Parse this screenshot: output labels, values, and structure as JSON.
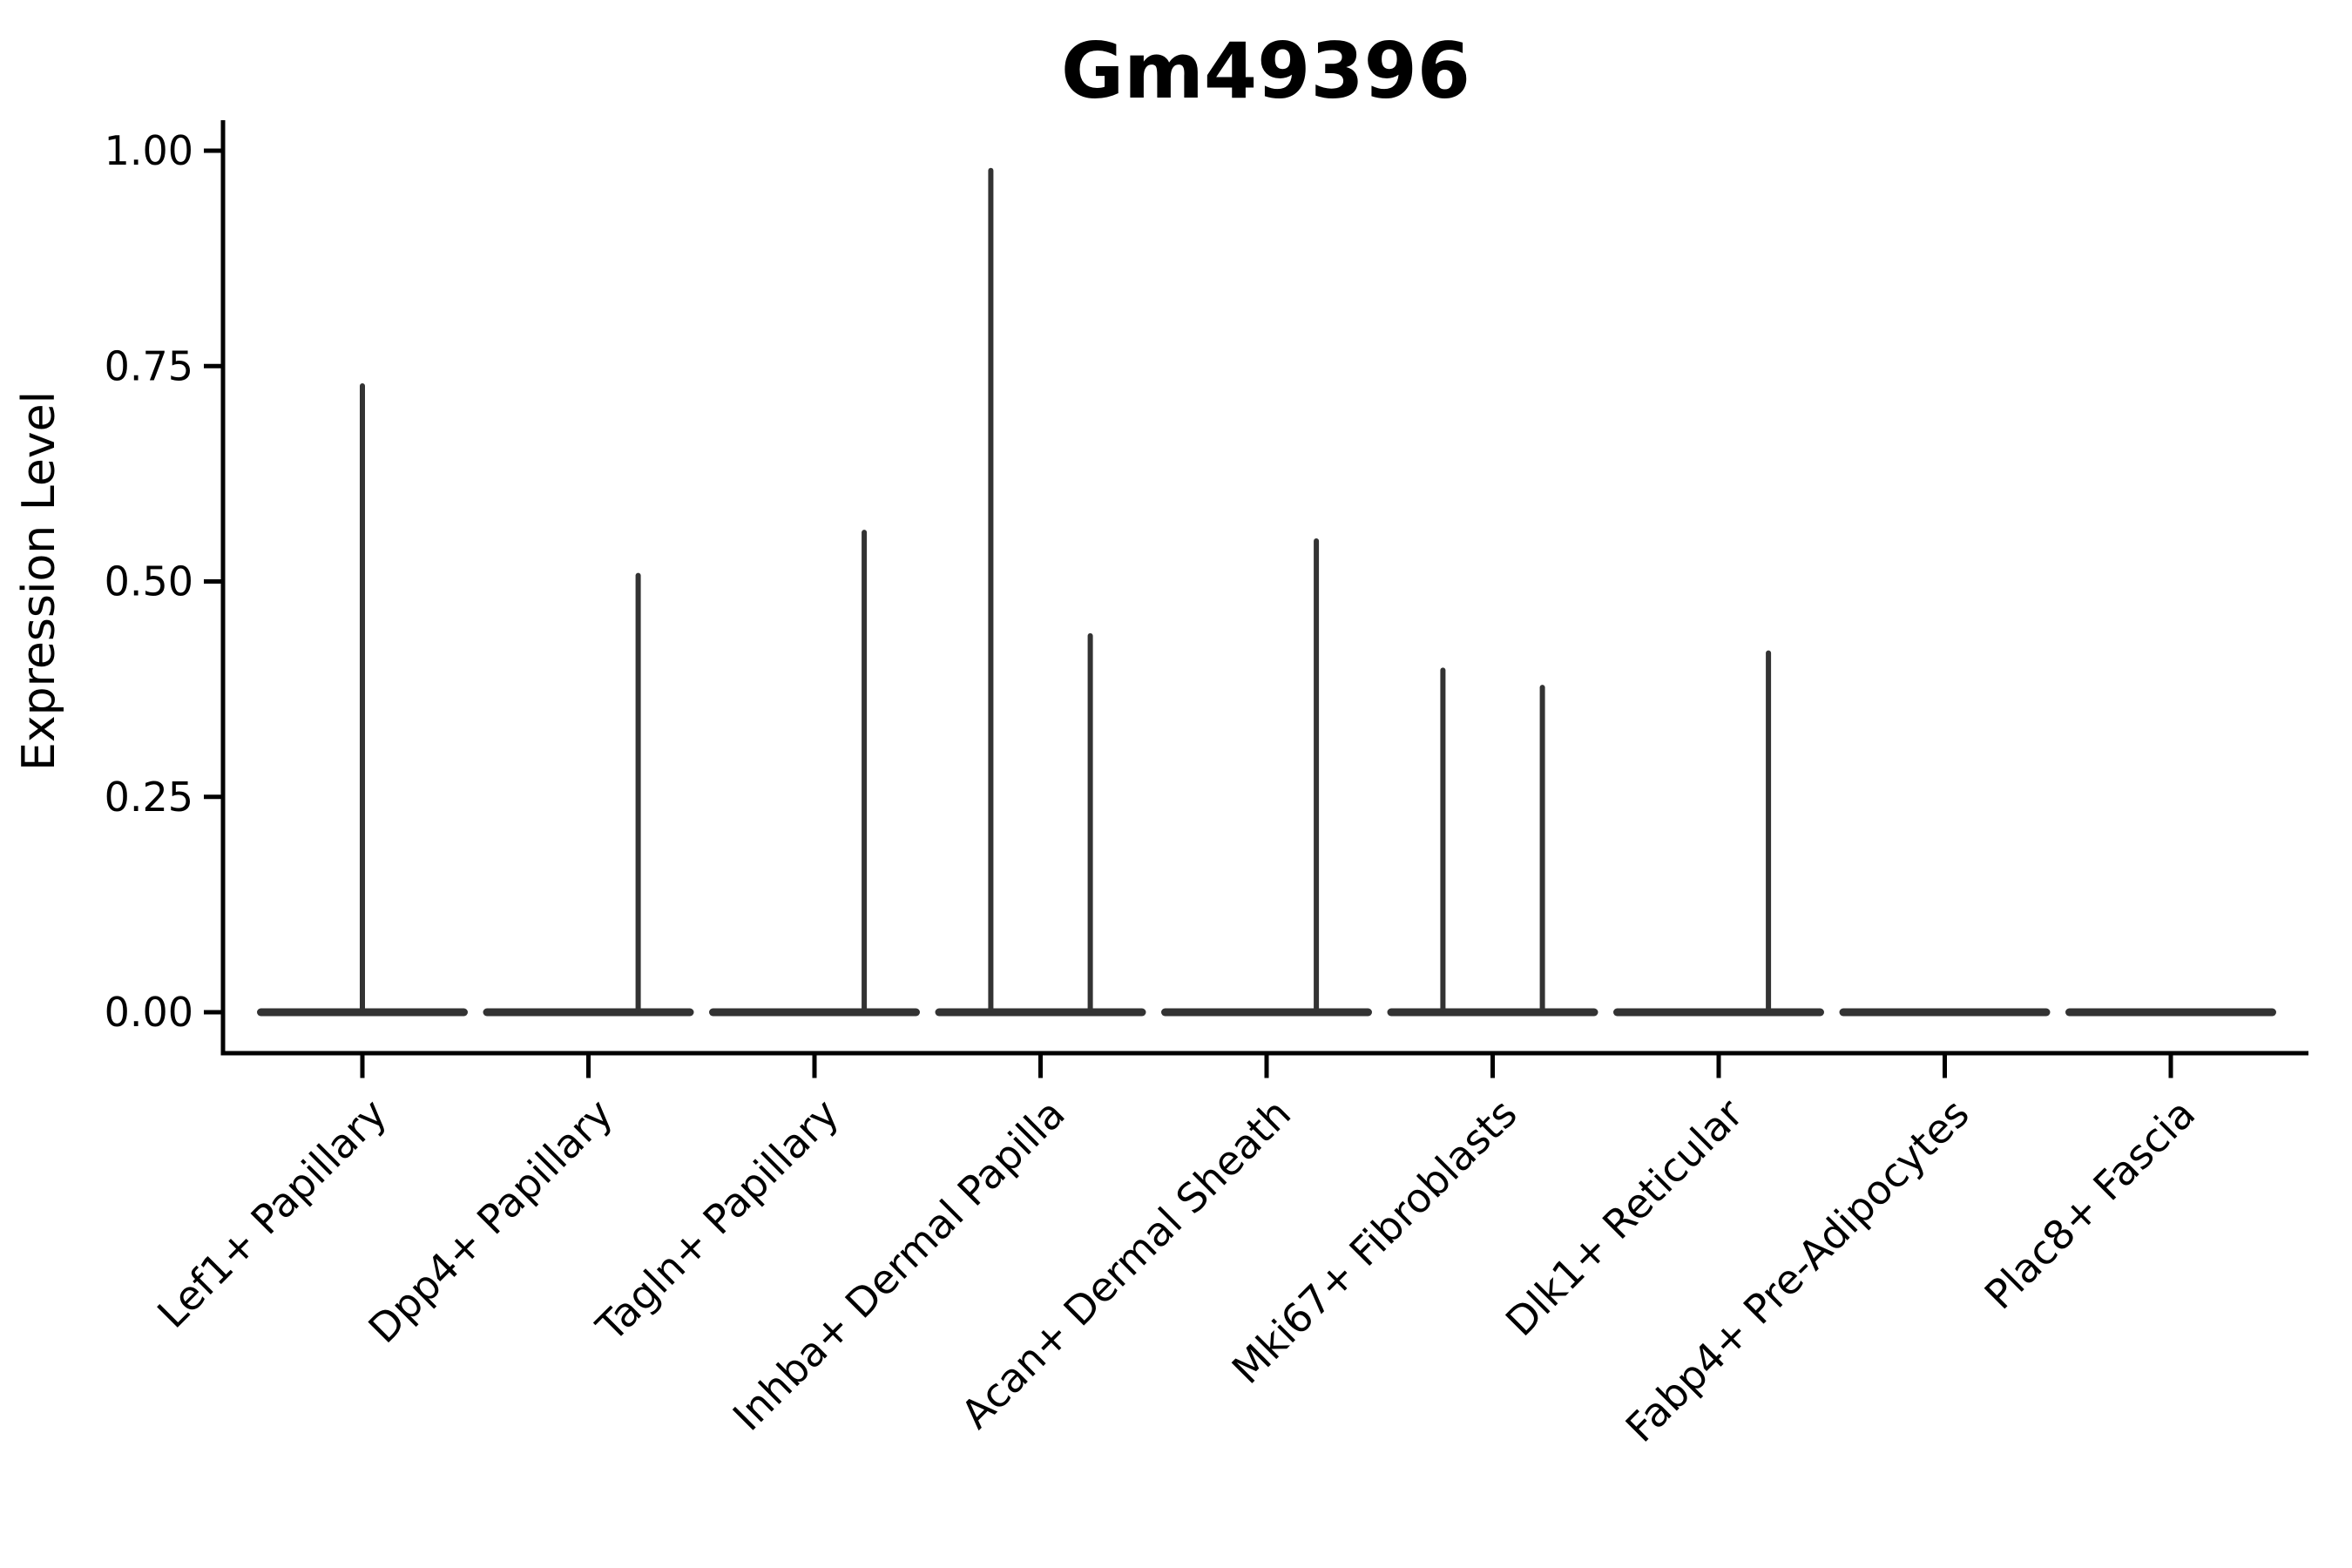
{
  "title": "Gm49396",
  "chart_data": {
    "type": "violin",
    "title": "Gm49396",
    "xlabel": "",
    "ylabel": "Expression Level",
    "ylim": [
      0,
      1.0
    ],
    "yticks": [
      {
        "value": 0.0,
        "label": "0.00"
      },
      {
        "value": 0.25,
        "label": "0.25"
      },
      {
        "value": 0.5,
        "label": "0.50"
      },
      {
        "value": 0.75,
        "label": "0.75"
      },
      {
        "value": 1.0,
        "label": "1.00"
      }
    ],
    "grid": false,
    "legend": "none",
    "categories": [
      "Lef1+ Papillary",
      "Dpp4+ Papillary",
      "Tagln+ Papillary",
      "Inhba+ Dermal Papilla",
      "Acan+ Dermal Sheath",
      "Mki67+ Fibroblasts",
      "Dlk1+ Reticular",
      "Fabp4+ Pre-Adipocytes",
      "Plac8+ Fascia"
    ],
    "violins": [
      {
        "category": "Lef1+ Papillary",
        "base_value": 0.0,
        "spikes": [
          {
            "offset": 0.0,
            "max": 0.73
          }
        ]
      },
      {
        "category": "Dpp4+ Papillary",
        "base_value": 0.0,
        "spikes": [
          {
            "offset": 0.22,
            "max": 0.51
          }
        ]
      },
      {
        "category": "Tagln+ Papillary",
        "base_value": 0.0,
        "spikes": [
          {
            "offset": 0.22,
            "max": 0.56
          }
        ]
      },
      {
        "category": "Inhba+ Dermal Papilla",
        "base_value": 0.0,
        "spikes": [
          {
            "offset": -0.22,
            "max": 0.98
          },
          {
            "offset": 0.22,
            "max": 0.44
          }
        ]
      },
      {
        "category": "Acan+ Dermal Sheath",
        "base_value": 0.0,
        "spikes": [
          {
            "offset": 0.22,
            "max": 0.55
          }
        ]
      },
      {
        "category": "Mki67+ Fibroblasts",
        "base_value": 0.0,
        "spikes": [
          {
            "offset": -0.22,
            "max": 0.4
          },
          {
            "offset": 0.22,
            "max": 0.38
          }
        ]
      },
      {
        "category": "Dlk1+ Reticular",
        "base_value": 0.0,
        "spikes": [
          {
            "offset": 0.22,
            "max": 0.42
          }
        ]
      },
      {
        "category": "Fabp4+ Pre-Adipocytes",
        "base_value": 0.0,
        "spikes": []
      },
      {
        "category": "Plac8+ Fascia",
        "base_value": 0.0,
        "spikes": []
      }
    ],
    "colors": {
      "violin_line": "#333333",
      "axis": "#000000",
      "text": "#000000",
      "background": "#ffffff"
    }
  }
}
